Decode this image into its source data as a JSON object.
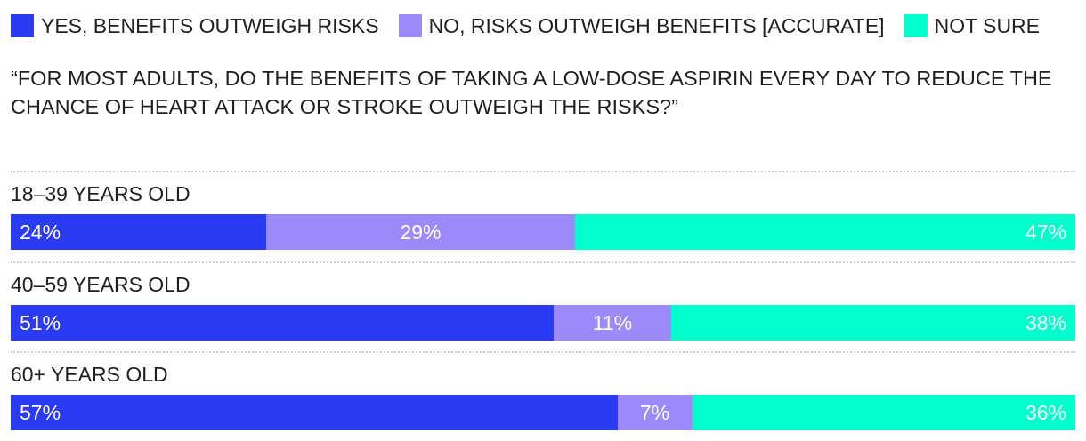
{
  "legend": [
    {
      "label": "YES, BENEFITS OUTWEIGH RISKS",
      "color": "#2b3bf3"
    },
    {
      "label": "NO, RISKS OUTWEIGH BENEFITS [ACCURATE]",
      "color": "#9c8afa"
    },
    {
      "label": "NOT SURE",
      "color": "#00ffcc"
    }
  ],
  "question": "“FOR MOST ADULTS, DO THE BENEFITS OF TAKING A LOW-DOSE ASPIRIN EVERY DAY TO REDUCE THE CHANCE OF HEART ATTACK OR STROKE OUTWEIGH THE RISKS?”",
  "chart_data": {
    "type": "bar",
    "orientation": "horizontal",
    "stacked": true,
    "title": "“FOR MOST ADULTS, DO THE BENEFITS OF TAKING A LOW-DOSE ASPIRIN EVERY DAY TO REDUCE THE CHANCE OF HEART ATTACK OR STROKE OUTWEIGH THE RISKS?”",
    "categories": [
      "18–39 YEARS OLD",
      "40–59 YEARS OLD",
      "60+ YEARS OLD"
    ],
    "series": [
      {
        "name": "YES, BENEFITS OUTWEIGH RISKS",
        "color": "#2b3bf3",
        "values": [
          24,
          51,
          57
        ],
        "labels": [
          "24%",
          "51%",
          "57%"
        ]
      },
      {
        "name": "NO, RISKS OUTWEIGH BENEFITS [ACCURATE]",
        "color": "#9c8afa",
        "values": [
          29,
          11,
          7
        ],
        "labels": [
          "29%",
          "11%",
          "7%"
        ]
      },
      {
        "name": "NOT SURE",
        "color": "#00ffcc",
        "values": [
          47,
          38,
          36
        ],
        "labels": [
          "47%",
          "38%",
          "36%"
        ]
      }
    ],
    "xlim": [
      0,
      100
    ],
    "legend_position": "top-left",
    "grid": false
  }
}
